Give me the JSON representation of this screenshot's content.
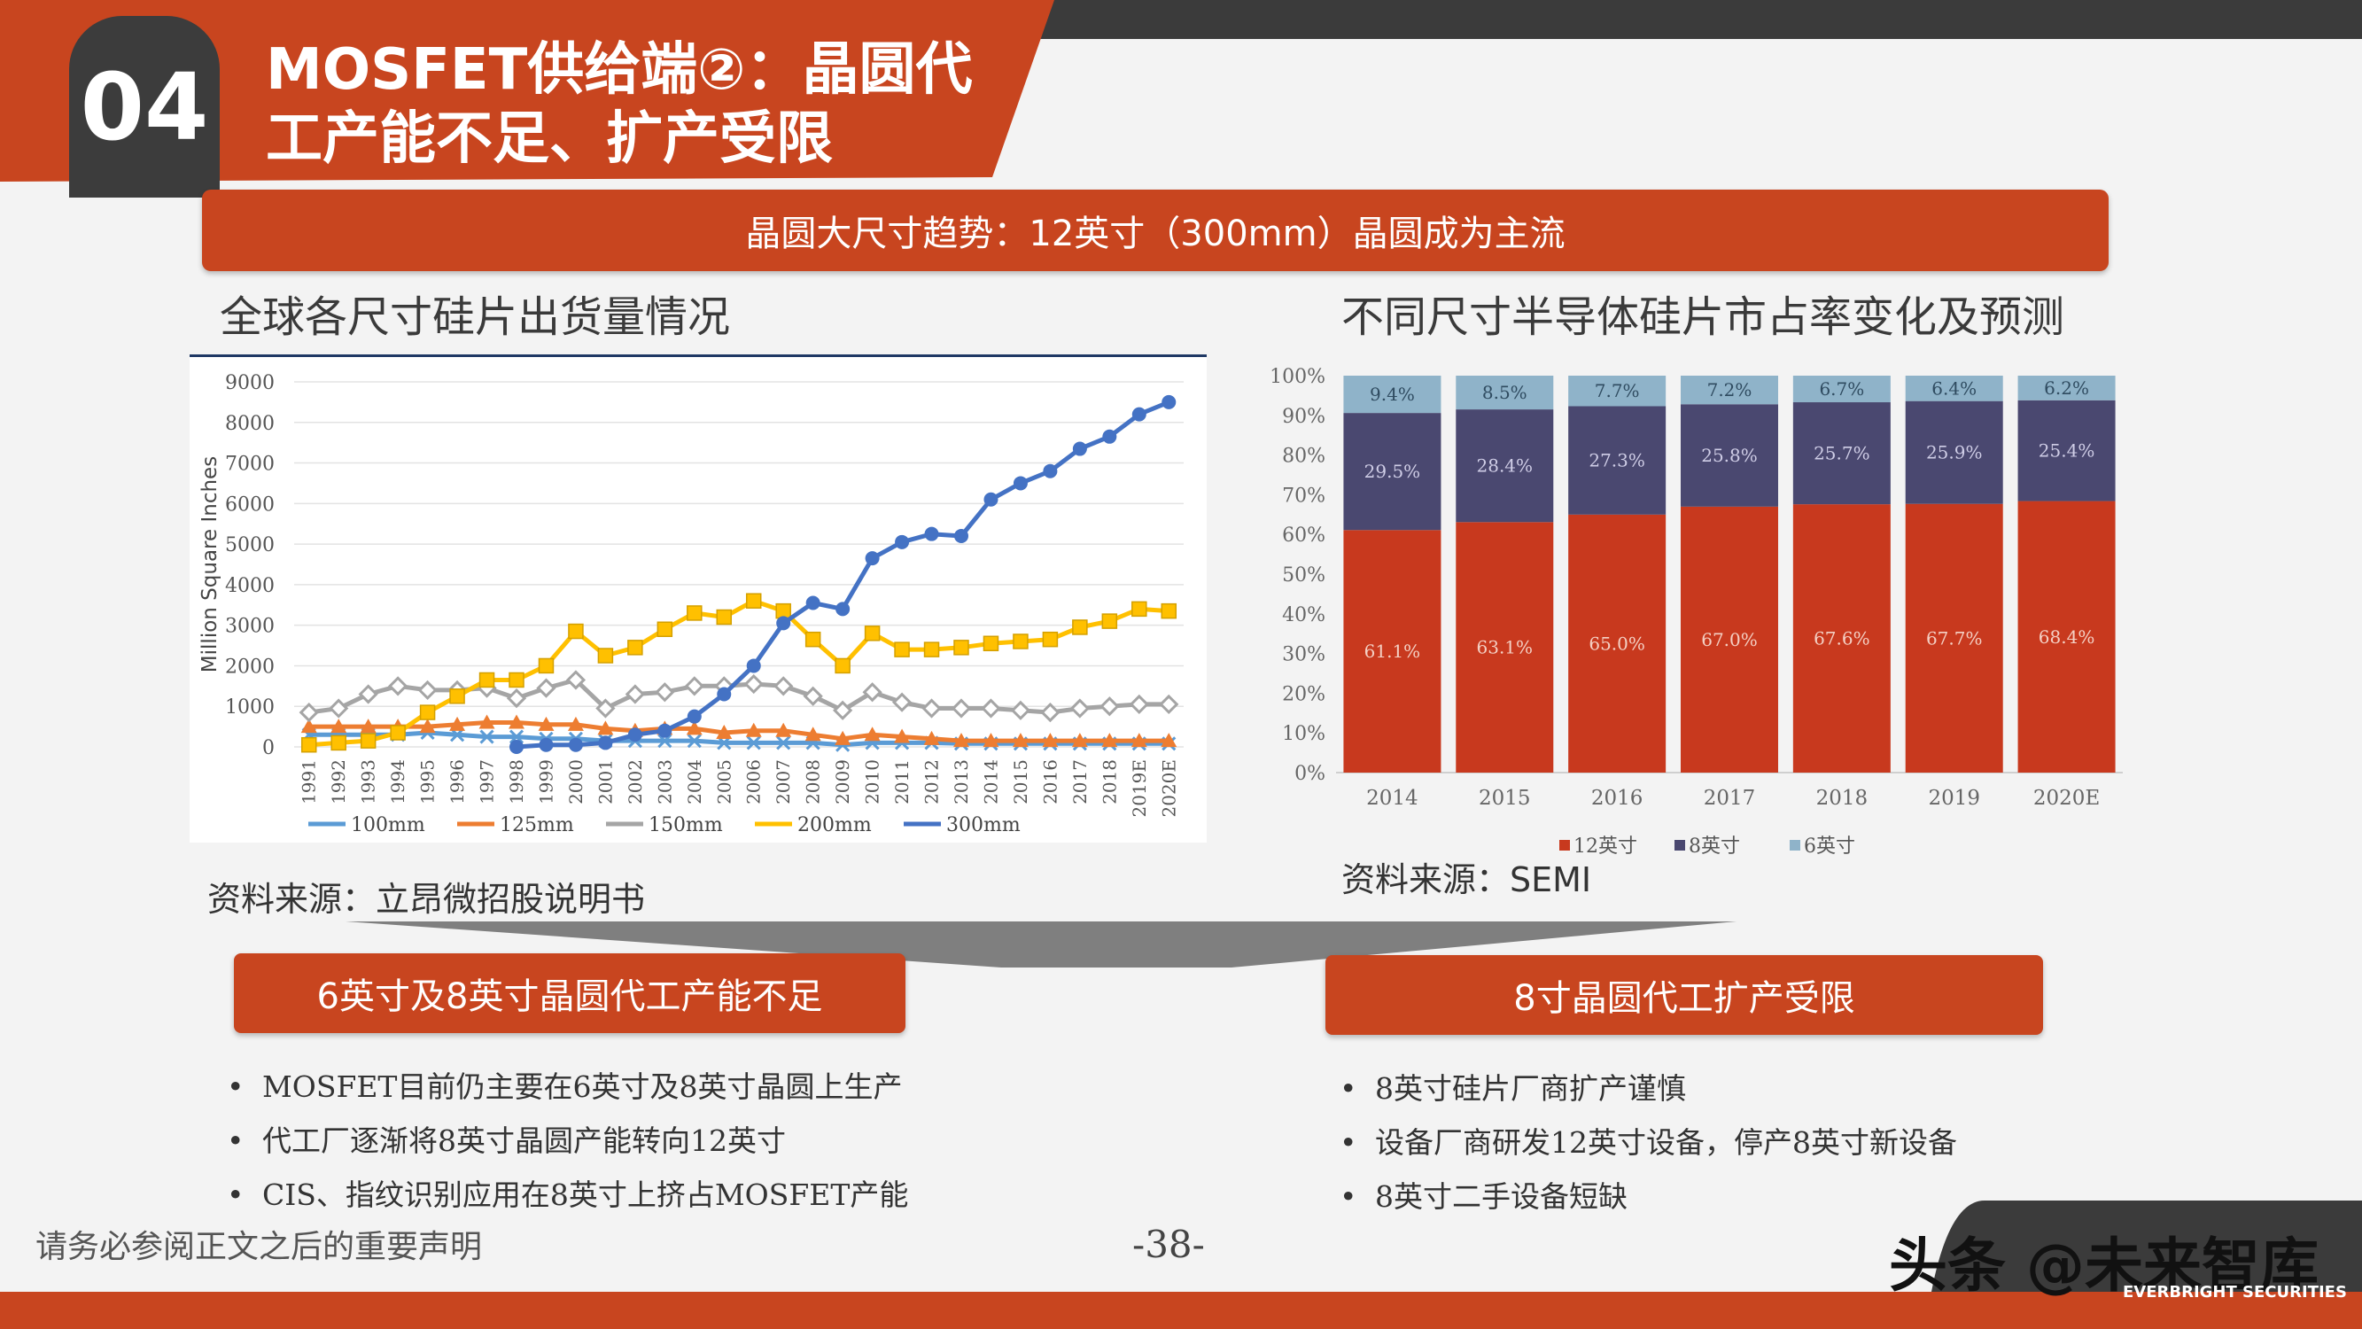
{
  "header": {
    "section_number": "04",
    "title_line1": "MOSFET供给端②：晶圆代",
    "title_line2": "工产能不足、扩产受限"
  },
  "banner": {
    "text": "晶圆大尺寸趋势：12英寸（300mm）晶圆成为主流"
  },
  "left_panel": {
    "title": "全球各尺寸硅片出货量情况",
    "source": "资料来源：立昂微招股说明书"
  },
  "right_panel": {
    "title": "不同尺寸半导体硅片市占率变化及预测",
    "source": "资料来源：SEMI"
  },
  "colors": {
    "accent": "#c8451f",
    "dark": "#3b3b3b",
    "s100": "#5b9bd5",
    "s125": "#ed7d31",
    "s150": "#a5a5a5",
    "s200": "#ffc000",
    "s300": "#4472c4",
    "seg12": "#c8391e",
    "seg8": "#4a4870",
    "seg6": "#8fb3c9"
  },
  "chart_data": [
    {
      "type": "line",
      "title": "",
      "ylabel": "Million Square Inches",
      "ylim": [
        0,
        9000
      ],
      "yticks": [
        "0",
        "1000",
        "2000",
        "3000",
        "4000",
        "5000",
        "6000",
        "7000",
        "8000",
        "9000"
      ],
      "categories": [
        "1991",
        "1992",
        "1993",
        "1994",
        "1995",
        "1996",
        "1997",
        "1998",
        "1999",
        "2000",
        "2001",
        "2002",
        "2003",
        "2004",
        "2005",
        "2006",
        "2007",
        "2008",
        "2009",
        "2010",
        "2011",
        "2012",
        "2013",
        "2014",
        "2015",
        "2016",
        "2017",
        "2018",
        "2019E",
        "2020E"
      ],
      "series": [
        {
          "name": "100mm",
          "values": [
            300,
            300,
            300,
            300,
            350,
            300,
            250,
            250,
            200,
            200,
            150,
            150,
            150,
            150,
            100,
            100,
            100,
            100,
            50,
            100,
            100,
            100,
            80,
            80,
            80,
            80,
            80,
            80,
            80,
            80
          ]
        },
        {
          "name": "125mm",
          "values": [
            500,
            500,
            500,
            500,
            500,
            550,
            600,
            600,
            550,
            550,
            450,
            400,
            450,
            450,
            350,
            400,
            400,
            300,
            200,
            300,
            250,
            200,
            150,
            150,
            150,
            150,
            150,
            150,
            150,
            150
          ]
        },
        {
          "name": "150mm",
          "values": [
            850,
            950,
            1300,
            1500,
            1400,
            1400,
            1450,
            1200,
            1450,
            1650,
            950,
            1300,
            1350,
            1500,
            1500,
            1550,
            1500,
            1250,
            900,
            1350,
            1100,
            950,
            950,
            950,
            900,
            850,
            950,
            1000,
            1050,
            1050
          ]
        },
        {
          "name": "200mm",
          "values": [
            50,
            100,
            150,
            350,
            850,
            1250,
            1650,
            1650,
            2000,
            2850,
            2250,
            2450,
            2900,
            3300,
            3200,
            3600,
            3350,
            2650,
            2000,
            2800,
            2400,
            2400,
            2450,
            2550,
            2600,
            2650,
            2950,
            3100,
            3400,
            3350
          ]
        },
        {
          "name": "300mm",
          "values": [
            null,
            null,
            null,
            null,
            null,
            null,
            null,
            0,
            50,
            50,
            100,
            300,
            400,
            750,
            1300,
            2000,
            3050,
            3550,
            3400,
            4650,
            5050,
            5250,
            5200,
            6100,
            6500,
            6800,
            7350,
            7650,
            8200,
            8500
          ]
        }
      ],
      "legend": "bottom"
    },
    {
      "type": "bar",
      "stacked": true,
      "title": "",
      "ylim": [
        0,
        100
      ],
      "yticks": [
        "0%",
        "10%",
        "20%",
        "30%",
        "40%",
        "50%",
        "60%",
        "70%",
        "80%",
        "90%",
        "100%"
      ],
      "categories": [
        "2014",
        "2015",
        "2016",
        "2017",
        "2018",
        "2019",
        "2020E"
      ],
      "series": [
        {
          "name": "12英寸",
          "values": [
            61.1,
            63.1,
            65.0,
            67.0,
            67.6,
            67.7,
            68.4
          ],
          "labels": [
            "61.1%",
            "63.1%",
            "65.0%",
            "67.0%",
            "67.6%",
            "67.7%",
            "68.4%"
          ]
        },
        {
          "name": "8英寸",
          "values": [
            29.5,
            28.4,
            27.3,
            25.8,
            25.7,
            25.9,
            25.4
          ],
          "labels": [
            "29.5%",
            "28.4%",
            "27.3%",
            "25.8%",
            "25.7%",
            "25.9%",
            "25.4%"
          ]
        },
        {
          "name": "6英寸",
          "values": [
            9.4,
            8.5,
            7.7,
            7.2,
            6.7,
            6.4,
            6.2
          ],
          "labels": [
            "9.4%",
            "8.5%",
            "7.7%",
            "7.2%",
            "6.7%",
            "6.4%",
            "6.2%"
          ]
        }
      ],
      "legend": "bottom"
    }
  ],
  "lower_left": {
    "heading": "6英寸及8英寸晶圆代工产能不足",
    "bullets": [
      "MOSFET目前仍主要在6英寸及8英寸晶圆上生产",
      "代工厂逐渐将8英寸晶圆产能转向12英寸",
      "CIS、指纹识别应用在8英寸上挤占MOSFET产能"
    ]
  },
  "lower_right": {
    "heading": "8寸晶圆代工扩产受限",
    "bullets": [
      "8英寸硅片厂商扩产谨慎",
      "设备厂商研发12英寸设备，停产8英寸新设备",
      "8英寸二手设备短缺"
    ]
  },
  "footer": {
    "disclaimer": "请务必参阅正文之后的重要声明",
    "page_number": "-38-",
    "watermark": "头条 @未来智库",
    "brand": "EVERBRIGHT SECURITIES"
  }
}
